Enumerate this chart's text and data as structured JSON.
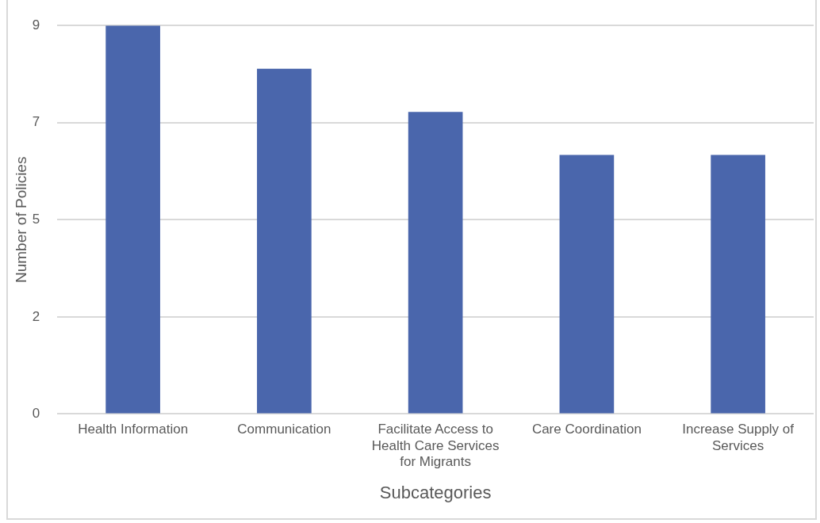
{
  "chart_data": {
    "type": "bar",
    "categories": [
      "Health Information",
      "Communication",
      "Facilitate Access to Health Care Services for Migrants",
      "Care Coordination",
      "Increase Supply of Services"
    ],
    "values": [
      9,
      8,
      7,
      6,
      6
    ],
    "color": "#4a66ac",
    "xlabel": "Subcategories",
    "ylabel": "Number of Policies",
    "ylim": [
      0,
      9
    ],
    "yticks": [
      0,
      {
        "value": 2.25,
        "label": "2"
      },
      {
        "value": 4.5,
        "label": "5"
      },
      {
        "value": 6.75,
        "label": "7"
      },
      9
    ],
    "grid": "y",
    "legend": false
  }
}
